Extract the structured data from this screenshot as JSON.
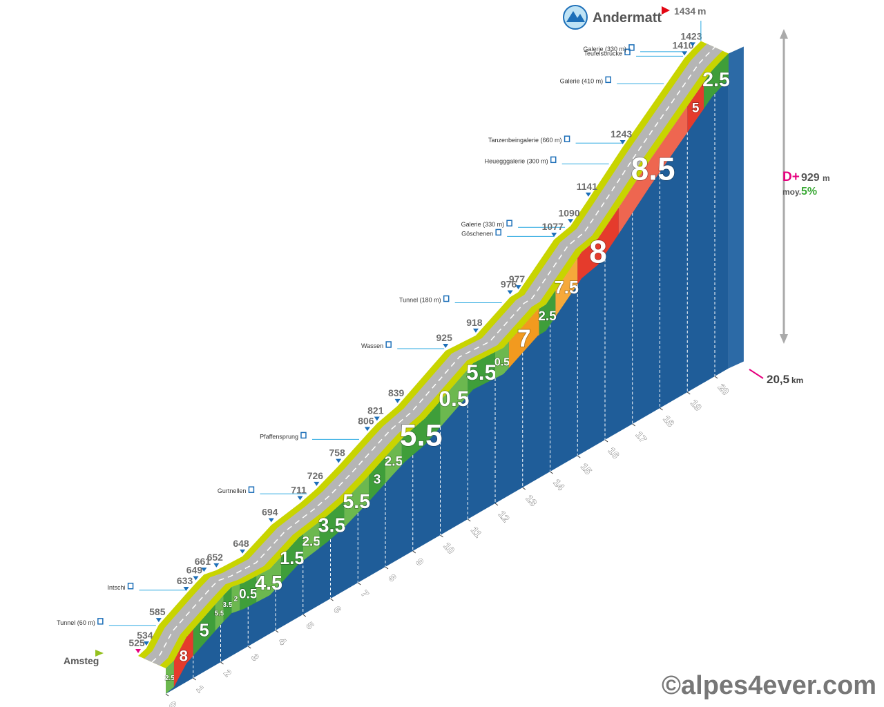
{
  "chart_data": {
    "type": "climb-profile",
    "start": "Amsteg",
    "finish": "Andermatt",
    "unit": "m",
    "altitudes": [
      {
        "km": 0,
        "alt": 525
      },
      {
        "km": 0.3,
        "alt": 534
      },
      {
        "km": 0.75,
        "alt": 585
      },
      {
        "km": 1.75,
        "alt": 633
      },
      {
        "km": 2.1,
        "alt": 649
      },
      {
        "km": 2.4,
        "alt": 661
      },
      {
        "km": 2.85,
        "alt": 652
      },
      {
        "km": 3.8,
        "alt": 648
      },
      {
        "km": 4.85,
        "alt": 694
      },
      {
        "km": 5.9,
        "alt": 711
      },
      {
        "km": 6.5,
        "alt": 726
      },
      {
        "km": 7.3,
        "alt": 758
      },
      {
        "km": 8.35,
        "alt": 806
      },
      {
        "km": 8.7,
        "alt": 821
      },
      {
        "km": 9.45,
        "alt": 839
      },
      {
        "km": 11.2,
        "alt": 925
      },
      {
        "km": 12.3,
        "alt": 918
      },
      {
        "km": 13.55,
        "alt": 976
      },
      {
        "km": 13.85,
        "alt": 977
      },
      {
        "km": 15.15,
        "alt": 1077
      },
      {
        "km": 15.75,
        "alt": 1090
      },
      {
        "km": 16.4,
        "alt": 1141
      },
      {
        "km": 17.65,
        "alt": 1243
      },
      {
        "km": 19.9,
        "alt": 1410
      },
      {
        "km": 20.2,
        "alt": 1423
      },
      {
        "km": 20.5,
        "alt": 1434
      }
    ],
    "places": [
      {
        "km": 0.7,
        "name": "Tunnel (60 m)"
      },
      {
        "km": 1.8,
        "name": "Intschi"
      },
      {
        "km": 6.2,
        "name": "Gurtnellen"
      },
      {
        "km": 8.1,
        "name": "Pfaffensprung"
      },
      {
        "km": 11.2,
        "name": "Wassen"
      },
      {
        "km": 13.3,
        "name": "Tunnel (180 m)"
      },
      {
        "km": 15.2,
        "name": "Göschenen"
      },
      {
        "km": 15.6,
        "name": "Galerie (330 m)"
      },
      {
        "km": 17.2,
        "name": "Heuegggalerie (300 m)"
      },
      {
        "km": 17.7,
        "name": "Tanzenbeingalerie (660 m)"
      },
      {
        "km": 19.2,
        "name": "Galerie (410 m)"
      },
      {
        "km": 19.9,
        "name": "Teufelsbrücke"
      },
      {
        "km": 20.05,
        "name": "Galerie (330 m)"
      }
    ],
    "segments": [
      {
        "from": 0,
        "to": 0.3,
        "grade": 2.5,
        "color": "#6cb84f"
      },
      {
        "from": 0.3,
        "to": 1,
        "grade": 8,
        "color": "#e53b2c"
      },
      {
        "from": 1,
        "to": 1.8,
        "grade": 5,
        "color": "#3f9e3a"
      },
      {
        "from": 1.8,
        "to": 2.1,
        "grade": 5.5,
        "color": "#6cb84f"
      },
      {
        "from": 2.1,
        "to": 2.4,
        "grade": 3.5,
        "color": "#3f9e3a"
      },
      {
        "from": 2.4,
        "to": 2.7,
        "grade": 2,
        "color": "#6cb84f"
      },
      {
        "from": 2.7,
        "to": 3.3,
        "grade": 0.5,
        "color": "#3f9e3a"
      },
      {
        "from": 3.3,
        "to": 4.2,
        "grade": 4.5,
        "color": "#6cb84f"
      },
      {
        "from": 4.2,
        "to": 5,
        "grade": 1.5,
        "color": "#3f9e3a"
      },
      {
        "from": 5,
        "to": 5.6,
        "grade": 2.5,
        "color": "#6cb84f"
      },
      {
        "from": 5.6,
        "to": 6.5,
        "grade": 3.5,
        "color": "#3f9e3a"
      },
      {
        "from": 6.5,
        "to": 7.4,
        "grade": 5.5,
        "color": "#6cb84f"
      },
      {
        "from": 7.4,
        "to": 8,
        "grade": 3,
        "color": "#3f9e3a"
      },
      {
        "from": 8,
        "to": 8.6,
        "grade": 2.5,
        "color": "#6cb84f"
      },
      {
        "from": 8.6,
        "to": 10,
        "grade": 5.5,
        "color": "#3f9e3a"
      },
      {
        "from": 10,
        "to": 11,
        "grade": 0.5,
        "color": "#6cb84f"
      },
      {
        "from": 11,
        "to": 12,
        "grade": 5.5,
        "color": "#3f9e3a"
      },
      {
        "from": 12,
        "to": 12.5,
        "grade": 0.5,
        "color": "#6cb84f"
      },
      {
        "from": 12.5,
        "to": 13.6,
        "grade": 7,
        "color": "#f29a1f"
      },
      {
        "from": 13.6,
        "to": 14.2,
        "grade": 2.5,
        "color": "#3f9e3a"
      },
      {
        "from": 14.2,
        "to": 15,
        "grade": 7.5,
        "color": "#f6a93a"
      },
      {
        "from": 15,
        "to": 16.5,
        "grade": 8,
        "color": "#e53b2c"
      },
      {
        "from": 16.5,
        "to": 19,
        "grade": 8.5,
        "color": "#ee6650"
      },
      {
        "from": 19,
        "to": 19.6,
        "grade": 5,
        "color": "#e53b2c"
      },
      {
        "from": 19.6,
        "to": 20.5,
        "grade": 2.5,
        "color": "#3f9e3a"
      }
    ],
    "km_ticks": [
      0,
      1,
      2,
      3,
      4,
      5,
      6,
      7,
      8,
      9,
      10,
      11,
      12,
      13,
      14,
      15,
      16,
      17,
      18,
      19,
      20
    ],
    "distance": {
      "value": 20.5,
      "label": "20,5"
    },
    "distance_unit": "km",
    "gain_label": "D+",
    "gain": 929,
    "avg_label": "moy.",
    "avg": {
      "value": 5,
      "label": "5%"
    },
    "watermark": "©alpes4ever.com"
  }
}
